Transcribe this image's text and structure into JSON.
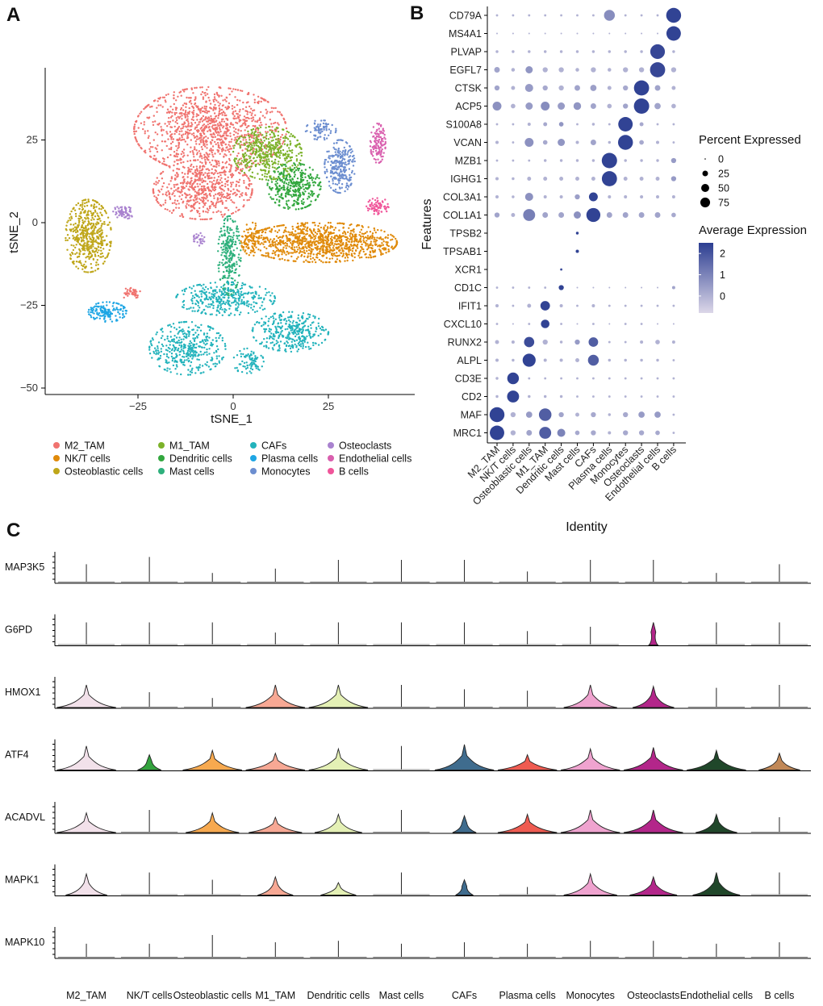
{
  "panel_labels": {
    "a": "A",
    "b": "B",
    "c": "C"
  },
  "chart_data": [
    {
      "type": "scatter",
      "panel": "A",
      "xlabel": "tSNE_1",
      "ylabel": "tSNE_2",
      "xlim": [
        -50,
        50
      ],
      "ylim": [
        -53,
        43
      ],
      "xticks": [
        -25,
        0,
        25
      ],
      "yticks": [
        -50,
        -25,
        0,
        25
      ],
      "grid": false,
      "legend_position": "bottom",
      "series": [
        {
          "name": "M2_TAM",
          "color": "#F0736F",
          "clusters": [
            {
              "cx": -6,
              "cy": 28,
              "rx": 20,
              "ry": 13,
              "n": 1100
            },
            {
              "cx": -8,
              "cy": 10,
              "rx": 13,
              "ry": 9,
              "n": 600
            },
            {
              "cx": -27,
              "cy": -21,
              "rx": 3,
              "ry": 2,
              "n": 40
            }
          ]
        },
        {
          "name": "NK/T cells",
          "color": "#E08A0A",
          "clusters": [
            {
              "cx": 23,
              "cy": -6,
              "rx": 20,
              "ry": 6,
              "n": 1000
            },
            {
              "cx": 5,
              "cy": -5,
              "rx": 3,
              "ry": 5,
              "n": 80
            }
          ]
        },
        {
          "name": "Osteoblastic cells",
          "color": "#BFA619",
          "clusters": [
            {
              "cx": -38,
              "cy": -4,
              "rx": 6,
              "ry": 11,
              "n": 500
            }
          ]
        },
        {
          "name": "M1_TAM",
          "color": "#7CB22A",
          "clusters": [
            {
              "cx": 9,
              "cy": 21,
              "rx": 9,
              "ry": 8,
              "n": 450
            }
          ]
        },
        {
          "name": "Dendritic cells",
          "color": "#32A73E",
          "clusters": [
            {
              "cx": 16,
              "cy": 11,
              "rx": 7,
              "ry": 7,
              "n": 350
            }
          ]
        },
        {
          "name": "Mast cells",
          "color": "#2EB07C",
          "clusters": [
            {
              "cx": -1,
              "cy": -10,
              "rx": 3,
              "ry": 12,
              "n": 260
            }
          ]
        },
        {
          "name": "CAFs",
          "color": "#23B3BC",
          "clusters": [
            {
              "cx": -12,
              "cy": -38,
              "rx": 10,
              "ry": 8,
              "n": 400
            },
            {
              "cx": -2,
              "cy": -23,
              "rx": 13,
              "ry": 5,
              "n": 350
            },
            {
              "cx": 15,
              "cy": -33,
              "rx": 10,
              "ry": 6,
              "n": 350
            },
            {
              "cx": 4,
              "cy": -42,
              "rx": 4,
              "ry": 4,
              "n": 80
            }
          ]
        },
        {
          "name": "Plasma cells",
          "color": "#1EA6E4",
          "clusters": [
            {
              "cx": -33,
              "cy": -27,
              "rx": 5,
              "ry": 3,
              "n": 150
            }
          ]
        },
        {
          "name": "Monocytes",
          "color": "#6C8ED0",
          "clusters": [
            {
              "cx": 28,
              "cy": 17,
              "rx": 4,
              "ry": 8,
              "n": 260
            },
            {
              "cx": 23,
              "cy": 28,
              "rx": 4,
              "ry": 3,
              "n": 80
            }
          ]
        },
        {
          "name": "Osteoclasts",
          "color": "#A982CF",
          "clusters": [
            {
              "cx": -29,
              "cy": 3,
              "rx": 3,
              "ry": 2,
              "n": 60
            },
            {
              "cx": -9,
              "cy": -5,
              "rx": 1.5,
              "ry": 2,
              "n": 30
            }
          ]
        },
        {
          "name": "Endothelial cells",
          "color": "#D95FAE",
          "clusters": [
            {
              "cx": 38,
              "cy": 24,
              "rx": 2,
              "ry": 6,
              "n": 120
            }
          ]
        },
        {
          "name": "B cells",
          "color": "#F0559A",
          "clusters": [
            {
              "cx": 38,
              "cy": 5,
              "rx": 3,
              "ry": 2.5,
              "n": 70
            }
          ]
        }
      ]
    },
    {
      "type": "dotplot",
      "panel": "B",
      "xlabel": "Identity",
      "ylabel": "Features",
      "identities": [
        "M2_TAM",
        "NK/T cells",
        "Osteoblastic cells",
        "M1_TAM",
        "Dendritic cells",
        "Mast cells",
        "CAFs",
        "Plasma cells",
        "Monocytes",
        "Osteoclasts",
        "Endothelial cells",
        "B cells"
      ],
      "features": [
        "CD79A",
        "MS4A1",
        "PLVAP",
        "EGFL7",
        "CTSK",
        "ACP5",
        "S100A8",
        "VCAN",
        "MZB1",
        "IGHG1",
        "COL3A1",
        "COL1A1",
        "TPSB2",
        "TPSAB1",
        "XCR1",
        "CD1C",
        "IFIT1",
        "CXCL10",
        "RUNX2",
        "ALPL",
        "CD3E",
        "CD2",
        "MAF",
        "MRC1"
      ],
      "pct_expressed": [
        [
          2,
          2,
          2,
          2,
          2,
          2,
          2,
          45,
          2,
          2,
          2,
          85
        ],
        [
          1,
          1,
          1,
          1,
          1,
          1,
          1,
          1,
          1,
          1,
          1,
          80
        ],
        [
          3,
          3,
          3,
          3,
          3,
          3,
          3,
          3,
          3,
          3,
          82,
          3
        ],
        [
          12,
          5,
          20,
          10,
          10,
          5,
          10,
          5,
          10,
          10,
          88,
          10
        ],
        [
          10,
          6,
          25,
          10,
          10,
          12,
          15,
          6,
          10,
          88,
          12,
          6
        ],
        [
          30,
          8,
          20,
          30,
          20,
          22,
          12,
          8,
          10,
          90,
          15,
          8
        ],
        [
          2,
          2,
          4,
          6,
          8,
          2,
          3,
          2,
          80,
          6,
          2,
          2
        ],
        [
          4,
          2,
          30,
          8,
          20,
          4,
          12,
          3,
          85,
          8,
          4,
          2
        ],
        [
          2,
          2,
          2,
          3,
          3,
          3,
          3,
          90,
          3,
          3,
          3,
          10
        ],
        [
          4,
          3,
          6,
          6,
          6,
          6,
          6,
          88,
          6,
          6,
          6,
          10
        ],
        [
          4,
          3,
          25,
          4,
          4,
          10,
          30,
          4,
          4,
          4,
          4,
          4
        ],
        [
          10,
          6,
          55,
          12,
          12,
          20,
          75,
          12,
          12,
          12,
          12,
          8
        ],
        [
          0,
          0,
          0,
          0,
          0,
          3,
          0,
          0,
          0,
          0,
          0,
          0
        ],
        [
          0,
          0,
          0,
          0,
          0,
          4,
          0,
          0,
          0,
          0,
          0,
          0
        ],
        [
          0,
          0,
          0,
          0,
          2,
          0,
          0,
          0,
          0,
          0,
          0,
          0
        ],
        [
          2,
          2,
          2,
          2,
          10,
          1,
          1,
          1,
          1,
          1,
          1,
          4
        ],
        [
          4,
          2,
          6,
          35,
          4,
          2,
          4,
          2,
          2,
          2,
          2,
          2
        ],
        [
          2,
          1,
          2,
          28,
          2,
          1,
          2,
          1,
          2,
          2,
          1,
          1
        ],
        [
          6,
          4,
          40,
          10,
          3,
          10,
          35,
          2,
          2,
          4,
          8,
          4
        ],
        [
          4,
          3,
          65,
          4,
          4,
          6,
          45,
          3,
          3,
          3,
          3,
          2
        ],
        [
          3,
          52,
          2,
          2,
          2,
          2,
          2,
          2,
          2,
          2,
          2,
          2
        ],
        [
          3,
          55,
          3,
          3,
          3,
          2,
          2,
          2,
          2,
          2,
          2,
          2
        ],
        [
          85,
          10,
          15,
          60,
          10,
          6,
          10,
          3,
          10,
          15,
          15,
          2
        ],
        [
          80,
          10,
          12,
          55,
          25,
          8,
          10,
          4,
          10,
          10,
          8,
          2
        ]
      ],
      "avg_expression": [
        [
          0,
          0,
          0,
          0,
          0,
          0,
          0,
          0.8,
          0,
          0,
          0,
          2.4
        ],
        [
          0,
          0,
          0,
          0,
          0,
          0,
          0,
          0,
          0,
          0,
          0,
          2.4
        ],
        [
          0,
          0,
          0,
          0,
          0,
          0,
          0,
          0,
          0,
          0,
          2.3,
          0
        ],
        [
          0.3,
          0,
          0.6,
          0,
          0,
          0,
          0,
          0,
          0,
          0,
          2.3,
          0
        ],
        [
          0.3,
          0,
          0.5,
          0.2,
          0,
          0.3,
          0.4,
          0,
          0.2,
          2.4,
          0.3,
          0
        ],
        [
          0.7,
          0,
          0.5,
          0.8,
          0.5,
          0.6,
          0.3,
          0,
          0.3,
          2.4,
          0.3,
          0
        ],
        [
          0,
          0,
          0,
          0.2,
          0.6,
          0,
          0,
          0,
          2.4,
          0.2,
          0,
          0
        ],
        [
          0,
          0,
          0.7,
          0.2,
          0.6,
          0,
          0.3,
          0,
          2.4,
          0.2,
          0,
          0
        ],
        [
          0,
          0,
          0,
          0,
          0,
          0,
          0,
          2.4,
          0,
          0,
          0,
          0.5
        ],
        [
          0,
          0,
          0,
          0,
          0,
          0,
          0,
          2.4,
          0,
          0,
          0,
          0.5
        ],
        [
          0,
          0,
          0.7,
          0,
          0,
          0.4,
          2.4,
          0,
          0,
          0,
          0,
          0
        ],
        [
          0.3,
          0,
          1.1,
          0.3,
          0.3,
          0.7,
          2.4,
          0.3,
          0.3,
          0.3,
          0.3,
          0.2
        ],
        [
          0,
          0,
          0,
          0,
          0,
          2.4,
          0,
          0,
          0,
          0,
          0,
          0
        ],
        [
          0,
          0,
          0,
          0,
          0,
          2.4,
          0,
          0,
          0,
          0,
          0,
          0
        ],
        [
          0,
          0,
          0,
          0,
          2.2,
          0,
          0,
          0,
          0,
          0,
          0,
          0
        ],
        [
          0,
          0,
          0,
          0,
          2.4,
          0,
          0,
          0,
          0,
          0,
          0,
          0.3
        ],
        [
          0,
          0,
          0,
          2.4,
          0,
          0,
          0,
          0,
          0,
          0,
          0,
          0
        ],
        [
          0,
          0,
          0,
          2.4,
          0,
          0,
          0,
          0,
          0,
          0,
          0,
          0
        ],
        [
          0,
          0,
          2.2,
          0,
          0,
          0.5,
          1.8,
          0,
          0,
          0,
          0,
          0
        ],
        [
          0,
          0,
          2.4,
          0,
          0,
          0,
          1.8,
          0,
          0,
          0,
          0,
          0
        ],
        [
          0,
          2.4,
          0,
          0,
          0,
          0,
          0,
          0,
          0,
          0,
          0,
          0
        ],
        [
          0,
          2.4,
          0,
          0,
          0,
          0,
          0,
          0,
          0,
          0,
          0,
          0
        ],
        [
          2.4,
          0,
          0.5,
          1.8,
          0.3,
          0,
          0.2,
          0,
          0.2,
          0.5,
          0.5,
          0
        ],
        [
          2.4,
          0,
          0.3,
          1.8,
          1.0,
          0.2,
          0.2,
          0,
          0.2,
          0.2,
          0.2,
          0
        ]
      ],
      "size_legend": {
        "title": "Percent Expressed",
        "values": [
          0,
          25,
          50,
          75
        ]
      },
      "color_legend": {
        "title": "Average Expression",
        "ticks": [
          2,
          1,
          0
        ],
        "range": [
          -0.8,
          2.5
        ],
        "low": "#DCD7E8",
        "high": "#2C3E91"
      }
    },
    {
      "type": "violin",
      "panel": "C",
      "categories": [
        "M2_TAM",
        "NK/T cells",
        "Osteoblastic cells",
        "M1_TAM",
        "Dendritic cells",
        "Mast cells",
        "CAFs",
        "Plasma cells",
        "Monocytes",
        "Osteoclasts",
        "Endothelial cells",
        "B cells"
      ],
      "colors": [
        "#F2E1EA",
        "#33A33E",
        "#F7A94F",
        "#F7A894",
        "#E4F0B5",
        "#E6E6E6",
        "#3F6C8E",
        "#EF5B51",
        "#EFA3CF",
        "#B3268A",
        "#20472A",
        "#C18857"
      ],
      "genes": [
        "MAP3K5",
        "G6PD",
        "HMOX1",
        "ATF4",
        "ACADVL",
        "MAPK1",
        "MAPK10"
      ],
      "violin_widths": [
        [
          0,
          0,
          0,
          0,
          0,
          0,
          0,
          0,
          0,
          0,
          0,
          0
        ],
        [
          0,
          0,
          0,
          0,
          0,
          0,
          0,
          0,
          0,
          0.15,
          0,
          0
        ],
        [
          1,
          0,
          0,
          1,
          1,
          0,
          0,
          0,
          0.9,
          0.7,
          0,
          0
        ],
        [
          1,
          0.4,
          1,
          1,
          1,
          0,
          1,
          1,
          1,
          1,
          1,
          0.7
        ],
        [
          1,
          0,
          0.9,
          0.9,
          0.8,
          0,
          0.4,
          1,
          1,
          1,
          0.7,
          0
        ],
        [
          0.7,
          0,
          0,
          0.6,
          0.6,
          0,
          0.3,
          0,
          0.9,
          0.8,
          0.8,
          0
        ],
        [
          0,
          0,
          0,
          0,
          0,
          0,
          0,
          0,
          0,
          0,
          0,
          0
        ]
      ],
      "peak_heights": [
        [
          0.6,
          0.85,
          0.3,
          0.45,
          0.75,
          0.75,
          0.75,
          0.35,
          0.75,
          0.75,
          0.3,
          0.6
        ],
        [
          0.75,
          0.75,
          0.75,
          0.4,
          0.75,
          0.75,
          0.75,
          0.45,
          0.6,
          0.75,
          0.75,
          0.75
        ],
        [
          0.75,
          0.5,
          0.3,
          0.75,
          0.75,
          0.75,
          0.6,
          0.55,
          0.75,
          0.7,
          0.65,
          0.75
        ],
        [
          0.8,
          0.5,
          0.65,
          0.55,
          0.7,
          0.8,
          0.85,
          0.5,
          0.7,
          0.75,
          0.65,
          0.55
        ],
        [
          0.65,
          0.75,
          0.65,
          0.5,
          0.6,
          0.75,
          0.55,
          0.6,
          0.75,
          0.75,
          0.6,
          0.5
        ],
        [
          0.7,
          0.75,
          0.5,
          0.6,
          0.4,
          0.75,
          0.5,
          0.25,
          0.7,
          0.6,
          0.75,
          0.75
        ],
        [
          0.45,
          0.45,
          0.75,
          0.5,
          0.55,
          0.45,
          0.5,
          0.45,
          0.55,
          0.55,
          0.45,
          0.5
        ]
      ]
    }
  ]
}
